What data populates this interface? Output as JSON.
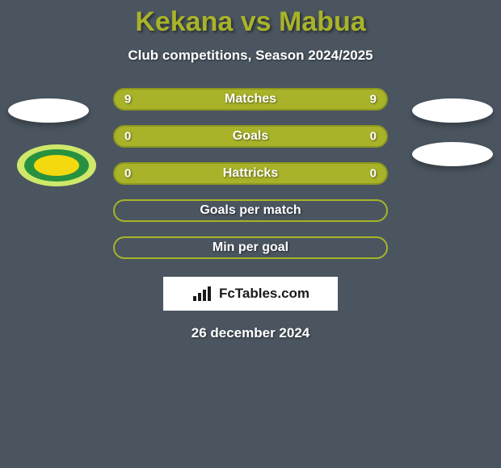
{
  "title": "Kekana vs Mabua",
  "subtitle": "Club competitions, Season 2024/2025",
  "date": "26 december 2024",
  "background_color": "#4a5560",
  "accent_color": "#a8b329",
  "pill_filled_bg": "#a8b329",
  "pill_filled_border": "#8e981f",
  "pill_empty_border": "#a8b329",
  "text_color": "#ffffff",
  "rows": [
    {
      "label": "Matches",
      "left": "9",
      "right": "9",
      "filled": true
    },
    {
      "label": "Goals",
      "left": "0",
      "right": "0",
      "filled": true
    },
    {
      "label": "Hattricks",
      "left": "0",
      "right": "0",
      "filled": true
    },
    {
      "label": "Goals per match",
      "left": "",
      "right": "",
      "filled": false
    },
    {
      "label": "Min per goal",
      "left": "",
      "right": "",
      "filled": false
    }
  ],
  "logo": {
    "outer_color": "#cfe86a",
    "mid_color": "#28913f",
    "inner_color": "#f4d90f"
  },
  "fctables": {
    "label": "FcTables.com",
    "icon_color": "#1a1a1a"
  }
}
